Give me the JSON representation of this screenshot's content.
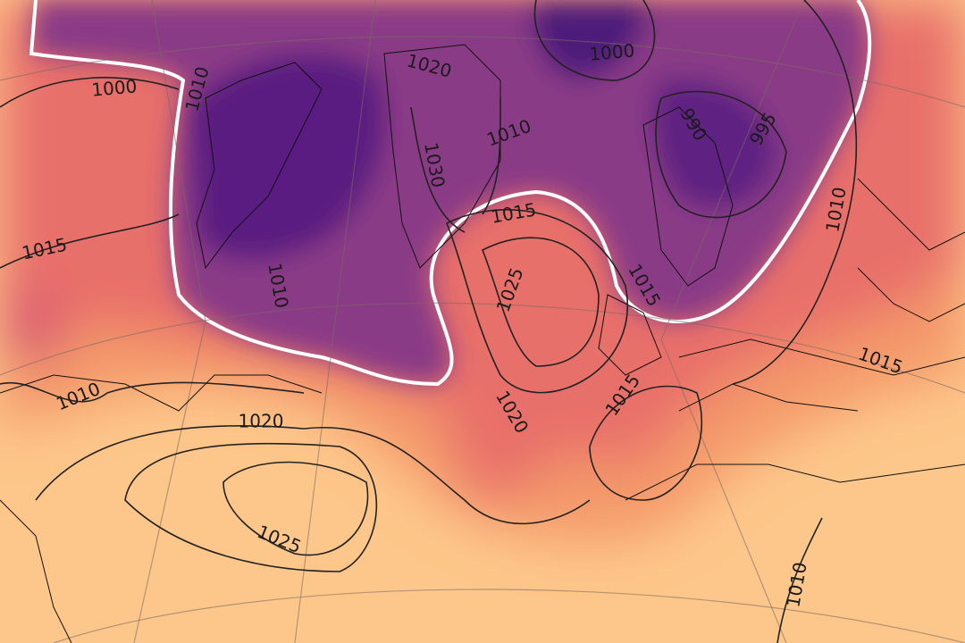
{
  "contour_labels": [
    1000,
    1010,
    1020,
    1030,
    1010,
    1000,
    990,
    995,
    1010,
    1015,
    1015,
    1025,
    1010,
    1015,
    1010,
    1020,
    1025,
    1020,
    1015,
    1015,
    1010
  ]
}
